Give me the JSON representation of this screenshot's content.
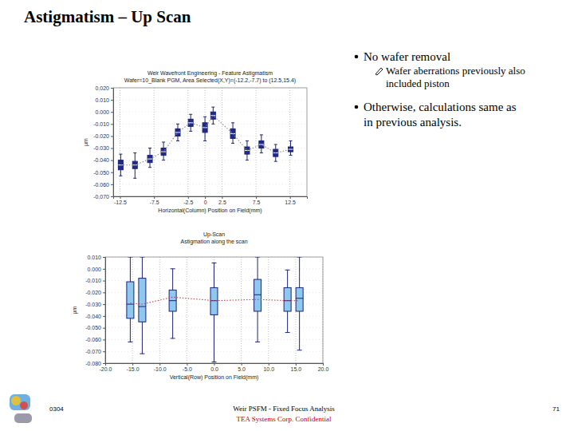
{
  "slide": {
    "title": "Astigmatism – Up Scan",
    "bullets": [
      {
        "lines": [
          "No wafer removal"
        ],
        "sub": [
          {
            "lines": [
              "Wafer aberrations previously also",
              "included piston"
            ]
          }
        ]
      },
      {
        "lines": [
          "Otherwise, calculations same as",
          "in previous analysis."
        ],
        "sub": []
      }
    ],
    "footer": {
      "left": "0304",
      "center": "Weir PSFM - Fixed Focus Analysis",
      "confidential": "TEA Systems Corp. Confidential",
      "page": "71"
    }
  },
  "chart_data": [
    {
      "type": "box",
      "title": "Weir Wavefront Engineering - Feature Astigmatism",
      "subtitle": "Wafer=10_Blank PGM, Area Selected(X,Y)=(-12.2,-7.7) to (12.5,15.4)",
      "x_label": "Horizontal(Column) Position on Field(mm)",
      "y_label": "µm",
      "grid": true,
      "xlim": [
        -13.5,
        15
      ],
      "xticks": [
        -12.5,
        -7.5,
        -2.5,
        0,
        2.5,
        7.5,
        12.5
      ],
      "ylim": [
        -0.07,
        0.02
      ],
      "yticks": [
        {
          "value": 0.02,
          "label": "0.020"
        },
        {
          "value": 0.01,
          "label": "0.010"
        },
        {
          "value": 0,
          "label": "0.000"
        },
        {
          "value": -0.01,
          "label": "-0.010"
        },
        {
          "value": -0.02,
          "label": "-0.020"
        },
        {
          "value": -0.03,
          "label": "-0.030"
        },
        {
          "value": -0.04,
          "label": "-0.040"
        },
        {
          "value": -0.05,
          "label": "-0.050"
        },
        {
          "value": -0.06,
          "label": "-0.060"
        },
        {
          "value": -0.07,
          "label": "-0.070"
        }
      ],
      "x": [
        -12.4,
        -10.3,
        -8.1,
        -6.1,
        -4.0,
        -2.1,
        0,
        1.2,
        4.1,
        6.2,
        8.3,
        10.4,
        12.6
      ],
      "series": [
        {
          "type": "box",
          "color": "#1f2a8a",
          "min": [
            -0.053,
            -0.055,
            -0.046,
            -0.04,
            -0.024,
            -0.016,
            -0.024,
            -0.01,
            -0.026,
            -0.04,
            -0.034,
            -0.041,
            -0.036
          ],
          "q1": [
            -0.048,
            -0.047,
            -0.042,
            -0.036,
            -0.02,
            -0.012,
            -0.017,
            -0.006,
            -0.022,
            -0.035,
            -0.03,
            -0.037,
            -0.033
          ],
          "median": [
            -0.044,
            -0.044,
            -0.039,
            -0.033,
            -0.017,
            -0.009,
            -0.013,
            -0.003,
            -0.018,
            -0.032,
            -0.027,
            -0.034,
            -0.031
          ],
          "q3": [
            -0.04,
            -0.041,
            -0.036,
            -0.03,
            -0.014,
            -0.006,
            -0.009,
            0.0,
            -0.014,
            -0.029,
            -0.024,
            -0.031,
            -0.029
          ],
          "max": [
            -0.035,
            -0.034,
            -0.03,
            -0.025,
            -0.01,
            -0.002,
            -0.004,
            0.004,
            -0.009,
            -0.024,
            -0.019,
            -0.027,
            -0.024
          ]
        },
        {
          "type": "line",
          "color": "#8a8a8a",
          "line_style": "dotted",
          "values": [
            -0.044,
            -0.044,
            -0.039,
            -0.033,
            -0.017,
            -0.009,
            -0.013,
            -0.003,
            -0.018,
            -0.032,
            -0.027,
            -0.034,
            -0.031
          ]
        }
      ]
    },
    {
      "type": "box",
      "title": "Up-Scan",
      "subtitle": "Astigmation along the scan",
      "x_label": "Vertical(Row) Position on Field(mm)",
      "y_label": "µm",
      "grid": true,
      "xlim": [
        -20,
        20
      ],
      "xticks": [
        {
          "value": -20,
          "label": "-20.0"
        },
        {
          "value": -15,
          "label": "-15.0"
        },
        {
          "value": -10,
          "label": "-10.0"
        },
        {
          "value": -5,
          "label": "-5.0"
        },
        {
          "value": 0,
          "label": "0.0"
        },
        {
          "value": 5,
          "label": "5.0"
        },
        {
          "value": 10,
          "label": "10.0"
        },
        {
          "value": 15,
          "label": "15.0"
        },
        {
          "value": 20,
          "label": "20.0"
        }
      ],
      "ylim": [
        -0.08,
        0.01
      ],
      "yticks": [
        {
          "value": 0.01,
          "label": "0.010"
        },
        {
          "value": 0,
          "label": "0.000"
        },
        {
          "value": -0.01,
          "label": "-0.010"
        },
        {
          "value": -0.02,
          "label": "-0.020"
        },
        {
          "value": -0.03,
          "label": "-0.030"
        },
        {
          "value": -0.04,
          "label": "-0.040"
        },
        {
          "value": -0.05,
          "label": "-0.050"
        },
        {
          "value": -0.06,
          "label": "-0.060"
        },
        {
          "value": -0.07,
          "label": "-0.070"
        },
        {
          "value": -0.08,
          "label": "-0.080"
        }
      ],
      "x": [
        -15.4,
        -13.2,
        -7.6,
        0,
        8,
        13.5,
        15.7
      ],
      "series": [
        {
          "type": "box",
          "color": "#8ec8ee",
          "min": [
            -0.062,
            -0.072,
            -0.059,
            -0.079,
            -0.062,
            -0.054,
            -0.069
          ],
          "q1": [
            -0.042,
            -0.045,
            -0.036,
            -0.039,
            -0.036,
            -0.036,
            -0.036
          ],
          "median": [
            -0.03,
            -0.032,
            -0.027,
            -0.027,
            -0.022,
            -0.027,
            -0.025
          ],
          "q3": [
            -0.011,
            -0.008,
            -0.018,
            -0.016,
            -0.009,
            -0.016,
            -0.016
          ],
          "max": [
            0.01,
            0.01,
            0.0,
            0.005,
            0.01,
            -0.001,
            0.01
          ]
        },
        {
          "type": "line",
          "color": "#c84040",
          "line_style": "dotted",
          "values": [
            -0.029,
            -0.03,
            -0.024,
            -0.027,
            -0.026,
            -0.027,
            -0.027
          ]
        }
      ]
    }
  ]
}
